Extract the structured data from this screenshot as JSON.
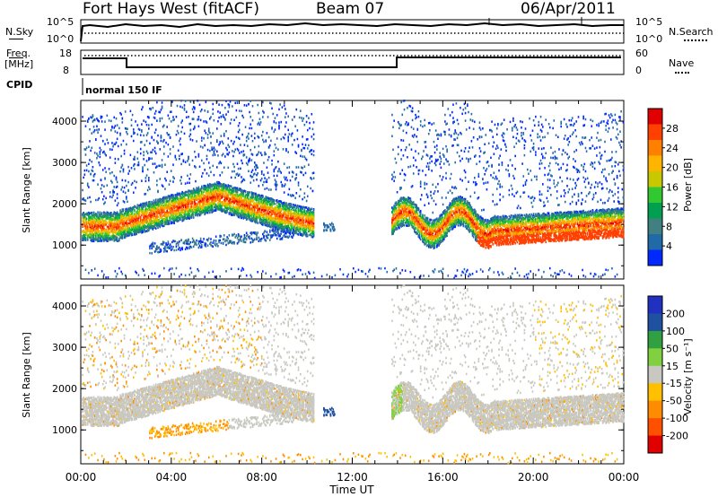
{
  "header": {
    "title": "Fort Hays West (fitACF)",
    "beam": "Beam 07",
    "date": "06/Apr/2011"
  },
  "top_panels": {
    "nsky_label": "N.Sky",
    "nsearch_label": "N.Search",
    "noise_tick_hi": "10^5",
    "noise_tick_lo": "10^0",
    "freq_label_1": "Freq.",
    "freq_label_2": "[MHz]",
    "freq_tick_hi": "18",
    "freq_tick_lo": "8",
    "nave_label": "Nave",
    "nave_tick_hi": "60",
    "nave_tick_lo": "0",
    "cpid_label": "CPID",
    "cpid_value": "normal 150 IF"
  },
  "x_axis": {
    "label": "Time UT",
    "ticks": [
      "00:00",
      "04:00",
      "08:00",
      "12:00",
      "16:00",
      "20:00",
      "00:00"
    ]
  },
  "chart_data": [
    {
      "type": "heatmap",
      "name": "power",
      "ylabel": "Slant Range [km]",
      "ylim": [
        180,
        4500
      ],
      "yticks": [
        "1000",
        "2000",
        "3000",
        "4000"
      ],
      "colorbar": {
        "label": "Power [dB]",
        "ticks": [
          "28",
          "24",
          "20",
          "16",
          "12",
          "8",
          "4"
        ],
        "colors": [
          "#e00000",
          "#ff4000",
          "#ff8000",
          "#ffb400",
          "#c8c800",
          "#32c832",
          "#00a050",
          "#408080",
          "#206aa8",
          "#0028ff"
        ]
      }
    },
    {
      "type": "heatmap",
      "name": "velocity",
      "ylabel": "Slant Range [km]",
      "ylim": [
        180,
        4500
      ],
      "yticks": [
        "1000",
        "2000",
        "3000",
        "4000"
      ],
      "colorbar": {
        "label": "Velocity [m s⁻¹]",
        "ticks": [
          "200",
          "100",
          "50",
          "15",
          "-15",
          "-50",
          "-100",
          "-200"
        ],
        "colors": [
          "#2030c0",
          "#2050a0",
          "#30a040",
          "#80d040",
          "#c8c8c0",
          "#ffc000",
          "#ff8c00",
          "#ff5000",
          "#e00000"
        ]
      }
    }
  ]
}
